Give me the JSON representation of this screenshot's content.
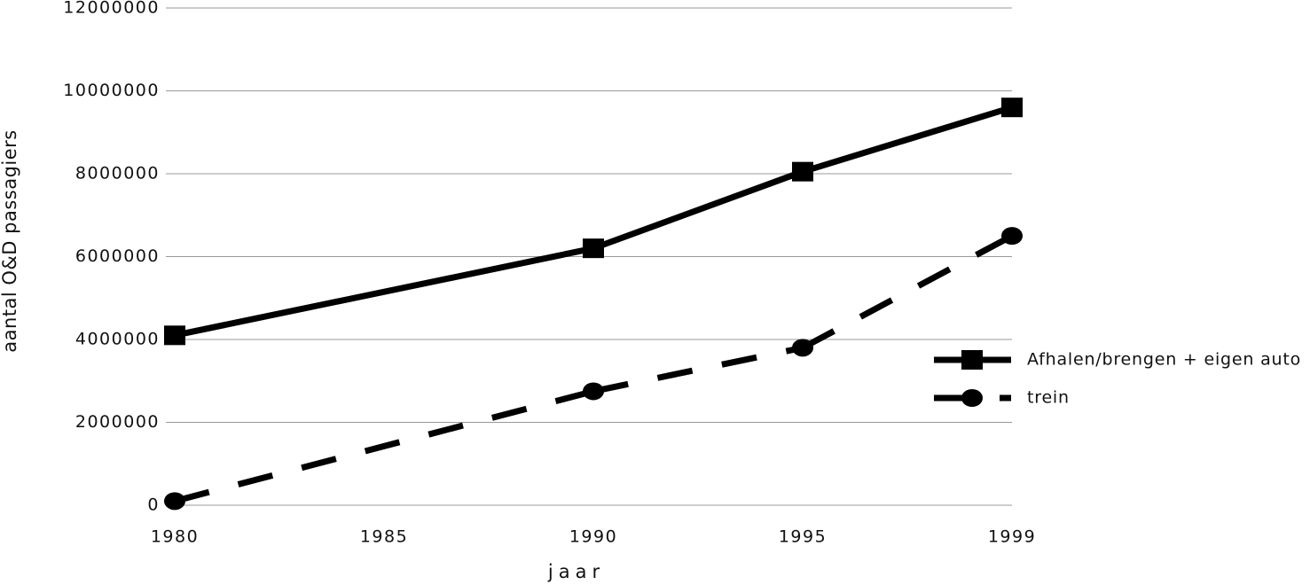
{
  "chart_data": {
    "type": "line",
    "x_label": "jaar",
    "y_label": "aantal O&D passagiers",
    "categories": [
      "1980",
      "1985",
      "1990",
      "1995",
      "1999"
    ],
    "series": [
      {
        "name": "Afhalen/brengen + eigen auto",
        "color": "#000000",
        "dash": false,
        "marker": "square",
        "values": [
          4100000,
          null,
          6200000,
          8050000,
          9600000
        ]
      },
      {
        "name": "trein",
        "color": "#000000",
        "dash": true,
        "marker": "circle",
        "values": [
          100000,
          null,
          2750000,
          3800000,
          6500000
        ]
      }
    ],
    "ylim": [
      0,
      12000000
    ],
    "yticks": [
      0,
      2000000,
      4000000,
      6000000,
      8000000,
      10000000,
      12000000
    ],
    "grid": true,
    "legend": "right"
  }
}
